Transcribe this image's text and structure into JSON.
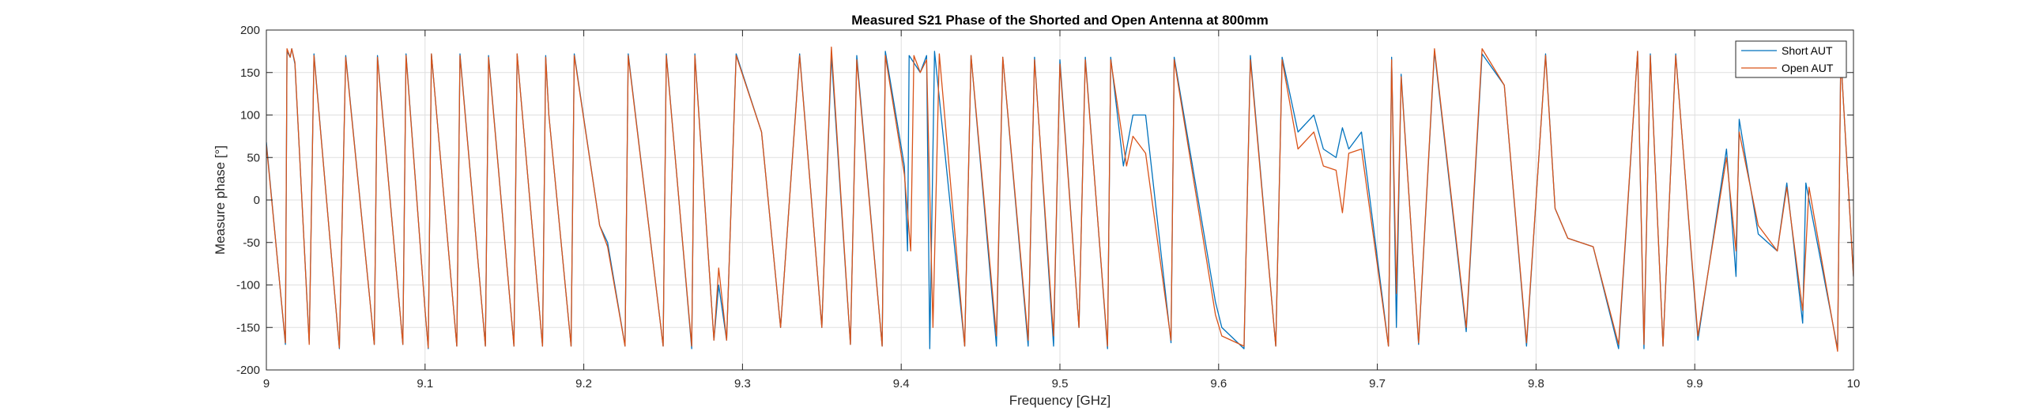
{
  "chart_data": {
    "type": "line",
    "title": "Measured S21 Phase of the Shorted and Open Antenna at 800mm",
    "xlabel": "Frequency [GHz]",
    "ylabel": "Measure phase [°]",
    "xlim": [
      9.0,
      10.0
    ],
    "ylim": [
      -200,
      200
    ],
    "x_ticks": [
      9,
      9.1,
      9.2,
      9.3,
      9.4,
      9.5,
      9.6,
      9.7,
      9.8,
      9.9,
      10
    ],
    "x_tick_labels": [
      "9",
      "9.1",
      "9.2",
      "9.3",
      "9.4",
      "9.5",
      "9.6",
      "9.7",
      "9.8",
      "9.9",
      "10"
    ],
    "y_ticks": [
      -200,
      -150,
      -100,
      -50,
      0,
      50,
      100,
      150,
      200
    ],
    "y_tick_labels": [
      "-200",
      "-150",
      "-100",
      "-50",
      "0",
      "50",
      "100",
      "150",
      "200"
    ],
    "grid": true,
    "legend_position": "top-right",
    "series": [
      {
        "name": "Short AUT",
        "color": "#0072BD",
        "points": [
          [
            9.0,
            68
          ],
          [
            9.012,
            -170
          ],
          [
            9.013,
            175
          ],
          [
            9.015,
            168
          ],
          [
            9.016,
            178
          ],
          [
            9.018,
            160
          ],
          [
            9.027,
            -168
          ],
          [
            9.03,
            172
          ],
          [
            9.046,
            -175
          ],
          [
            9.05,
            170
          ],
          [
            9.068,
            -170
          ],
          [
            9.07,
            170
          ],
          [
            9.086,
            -170
          ],
          [
            9.088,
            172
          ],
          [
            9.1,
            -130
          ],
          [
            9.102,
            -175
          ],
          [
            9.104,
            172
          ],
          [
            9.12,
            -172
          ],
          [
            9.122,
            172
          ],
          [
            9.138,
            -172
          ],
          [
            9.14,
            170
          ],
          [
            9.156,
            -172
          ],
          [
            9.158,
            172
          ],
          [
            9.174,
            -172
          ],
          [
            9.176,
            170
          ],
          [
            9.178,
            100
          ],
          [
            9.192,
            -172
          ],
          [
            9.194,
            172
          ],
          [
            9.21,
            -30
          ],
          [
            9.215,
            -50
          ],
          [
            9.226,
            -172
          ],
          [
            9.228,
            172
          ],
          [
            9.25,
            -172
          ],
          [
            9.252,
            172
          ],
          [
            9.268,
            -175
          ],
          [
            9.27,
            172
          ],
          [
            9.282,
            -165
          ],
          [
            9.285,
            -100
          ],
          [
            9.29,
            -165
          ],
          [
            9.296,
            172
          ],
          [
            9.312,
            80
          ],
          [
            9.324,
            -150
          ],
          [
            9.336,
            172
          ],
          [
            9.35,
            -150
          ],
          [
            9.356,
            170
          ],
          [
            9.368,
            -170
          ],
          [
            9.372,
            170
          ],
          [
            9.388,
            -172
          ],
          [
            9.39,
            175
          ],
          [
            9.402,
            40
          ],
          [
            9.404,
            -60
          ],
          [
            9.405,
            170
          ],
          [
            9.412,
            150
          ],
          [
            9.416,
            170
          ],
          [
            9.418,
            -175
          ],
          [
            9.421,
            175
          ],
          [
            9.44,
            -172
          ],
          [
            9.444,
            170
          ],
          [
            9.46,
            -172
          ],
          [
            9.464,
            168
          ],
          [
            9.48,
            -172
          ],
          [
            9.484,
            168
          ],
          [
            9.496,
            -172
          ],
          [
            9.5,
            165
          ],
          [
            9.512,
            -150
          ],
          [
            9.516,
            168
          ],
          [
            9.53,
            -175
          ],
          [
            9.532,
            168
          ],
          [
            9.54,
            40
          ],
          [
            9.546,
            100
          ],
          [
            9.554,
            100
          ],
          [
            9.57,
            -168
          ],
          [
            9.572,
            168
          ],
          [
            9.598,
            -120
          ],
          [
            9.602,
            -150
          ],
          [
            9.616,
            -175
          ],
          [
            9.62,
            170
          ],
          [
            9.636,
            -172
          ],
          [
            9.64,
            168
          ],
          [
            9.65,
            80
          ],
          [
            9.66,
            100
          ],
          [
            9.666,
            60
          ],
          [
            9.674,
            50
          ],
          [
            9.678,
            85
          ],
          [
            9.682,
            60
          ],
          [
            9.69,
            80
          ],
          [
            9.707,
            -172
          ],
          [
            9.709,
            168
          ],
          [
            9.712,
            -150
          ],
          [
            9.715,
            148
          ],
          [
            9.726,
            -170
          ],
          [
            9.736,
            175
          ],
          [
            9.756,
            -155
          ],
          [
            9.766,
            172
          ],
          [
            9.78,
            135
          ],
          [
            9.794,
            -172
          ],
          [
            9.806,
            172
          ],
          [
            9.812,
            -10
          ],
          [
            9.82,
            -45
          ],
          [
            9.836,
            -55
          ],
          [
            9.852,
            -175
          ],
          [
            9.864,
            175
          ],
          [
            9.868,
            -175
          ],
          [
            9.872,
            172
          ],
          [
            9.88,
            -172
          ],
          [
            9.888,
            172
          ],
          [
            9.902,
            -165
          ],
          [
            9.92,
            60
          ],
          [
            9.926,
            -90
          ],
          [
            9.928,
            95
          ],
          [
            9.94,
            -40
          ],
          [
            9.952,
            -60
          ],
          [
            9.958,
            20
          ],
          [
            9.968,
            -145
          ],
          [
            9.97,
            20
          ],
          [
            9.99,
            -175
          ],
          [
            9.992,
            170
          ],
          [
            10.0,
            -90
          ]
        ]
      },
      {
        "name": "Open AUT",
        "color": "#D95319",
        "points": [
          [
            9.0,
            65
          ],
          [
            9.012,
            -168
          ],
          [
            9.013,
            178
          ],
          [
            9.015,
            168
          ],
          [
            9.016,
            178
          ],
          [
            9.018,
            162
          ],
          [
            9.027,
            -170
          ],
          [
            9.03,
            170
          ],
          [
            9.046,
            -174
          ],
          [
            9.05,
            168
          ],
          [
            9.068,
            -170
          ],
          [
            9.07,
            168
          ],
          [
            9.086,
            -170
          ],
          [
            9.088,
            170
          ],
          [
            9.1,
            -130
          ],
          [
            9.102,
            -174
          ],
          [
            9.104,
            172
          ],
          [
            9.12,
            -172
          ],
          [
            9.122,
            170
          ],
          [
            9.138,
            -172
          ],
          [
            9.14,
            168
          ],
          [
            9.156,
            -172
          ],
          [
            9.158,
            172
          ],
          [
            9.174,
            -172
          ],
          [
            9.176,
            168
          ],
          [
            9.178,
            100
          ],
          [
            9.192,
            -172
          ],
          [
            9.194,
            170
          ],
          [
            9.21,
            -30
          ],
          [
            9.215,
            -55
          ],
          [
            9.226,
            -172
          ],
          [
            9.228,
            170
          ],
          [
            9.25,
            -172
          ],
          [
            9.252,
            170
          ],
          [
            9.268,
            -172
          ],
          [
            9.27,
            170
          ],
          [
            9.282,
            -165
          ],
          [
            9.285,
            -80
          ],
          [
            9.29,
            -165
          ],
          [
            9.296,
            170
          ],
          [
            9.312,
            80
          ],
          [
            9.324,
            -150
          ],
          [
            9.336,
            170
          ],
          [
            9.35,
            -150
          ],
          [
            9.356,
            180
          ],
          [
            9.368,
            -170
          ],
          [
            9.372,
            165
          ],
          [
            9.388,
            -172
          ],
          [
            9.39,
            170
          ],
          [
            9.402,
            30
          ],
          [
            9.406,
            -60
          ],
          [
            9.408,
            170
          ],
          [
            9.412,
            150
          ],
          [
            9.416,
            165
          ],
          [
            9.42,
            -150
          ],
          [
            9.424,
            172
          ],
          [
            9.44,
            -172
          ],
          [
            9.444,
            170
          ],
          [
            9.46,
            -160
          ],
          [
            9.464,
            168
          ],
          [
            9.48,
            -165
          ],
          [
            9.484,
            165
          ],
          [
            9.496,
            -160
          ],
          [
            9.5,
            160
          ],
          [
            9.512,
            -150
          ],
          [
            9.516,
            165
          ],
          [
            9.53,
            -172
          ],
          [
            9.532,
            165
          ],
          [
            9.542,
            40
          ],
          [
            9.546,
            75
          ],
          [
            9.554,
            55
          ],
          [
            9.57,
            -165
          ],
          [
            9.572,
            165
          ],
          [
            9.598,
            -135
          ],
          [
            9.602,
            -160
          ],
          [
            9.616,
            -172
          ],
          [
            9.62,
            165
          ],
          [
            9.636,
            -172
          ],
          [
            9.64,
            165
          ],
          [
            9.65,
            60
          ],
          [
            9.66,
            80
          ],
          [
            9.666,
            40
          ],
          [
            9.674,
            35
          ],
          [
            9.678,
            -15
          ],
          [
            9.682,
            55
          ],
          [
            9.69,
            60
          ],
          [
            9.707,
            -172
          ],
          [
            9.709,
            165
          ],
          [
            9.712,
            -110
          ],
          [
            9.715,
            145
          ],
          [
            9.726,
            -168
          ],
          [
            9.736,
            178
          ],
          [
            9.756,
            -150
          ],
          [
            9.766,
            178
          ],
          [
            9.78,
            135
          ],
          [
            9.794,
            -168
          ],
          [
            9.806,
            170
          ],
          [
            9.812,
            -10
          ],
          [
            9.82,
            -45
          ],
          [
            9.836,
            -55
          ],
          [
            9.852,
            -170
          ],
          [
            9.864,
            175
          ],
          [
            9.868,
            -170
          ],
          [
            9.872,
            170
          ],
          [
            9.88,
            -172
          ],
          [
            9.888,
            170
          ],
          [
            9.902,
            -160
          ],
          [
            9.92,
            50
          ],
          [
            9.926,
            -60
          ],
          [
            9.928,
            80
          ],
          [
            9.94,
            -30
          ],
          [
            9.952,
            -60
          ],
          [
            9.958,
            15
          ],
          [
            9.968,
            -130
          ],
          [
            9.972,
            15
          ],
          [
            9.99,
            -178
          ],
          [
            9.992,
            170
          ],
          [
            10.0,
            -90
          ]
        ]
      }
    ]
  }
}
